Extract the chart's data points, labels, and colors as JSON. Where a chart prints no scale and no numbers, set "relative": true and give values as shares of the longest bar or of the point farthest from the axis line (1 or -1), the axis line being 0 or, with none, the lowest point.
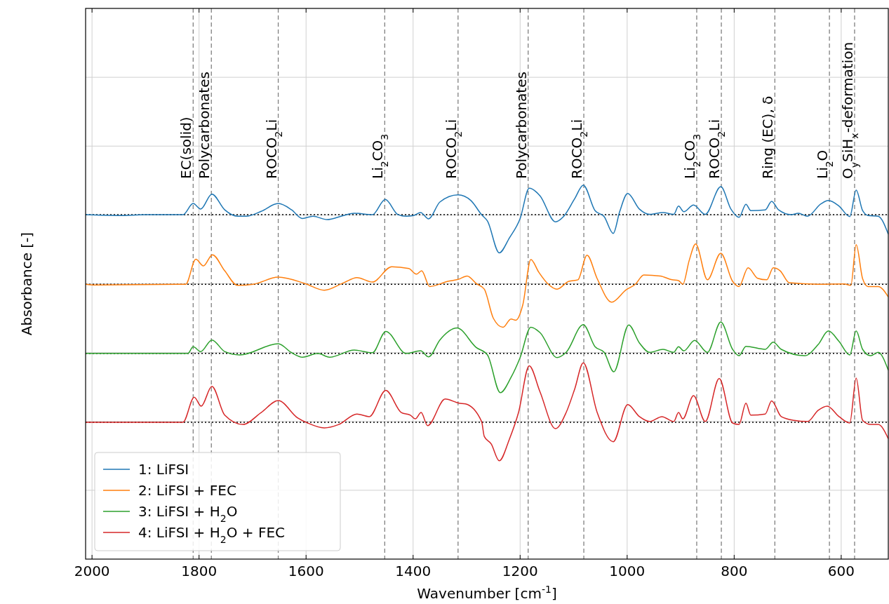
{
  "chart_data": {
    "type": "line",
    "xlabel": "Wavenumber [cm$^{-1}$]",
    "ylabel": "Absorbance [-]",
    "relative": true,
    "xlim": [
      2012,
      512
    ],
    "xticks": [
      2000,
      1800,
      1600,
      1400,
      1200,
      1000,
      800,
      600
    ],
    "grid": true,
    "legend": "bottom left",
    "series": [
      {
        "name": "1: LiFSI",
        "color": "#1f77b4",
        "x": [
          2012,
          1950,
          1900,
          1830,
          1811,
          1797,
          1776,
          1752,
          1728,
          1712,
          1684,
          1652,
          1627,
          1607,
          1587,
          1561,
          1530,
          1510,
          1476,
          1452,
          1428,
          1413,
          1399,
          1386,
          1371,
          1350,
          1316,
          1292,
          1272,
          1261,
          1239,
          1220,
          1200,
          1183,
          1163,
          1134,
          1119,
          1098,
          1082,
          1060,
          1043,
          1026,
          1014,
          999,
          977,
          958,
          933,
          913,
          904,
          894,
          876,
          854,
          825,
          806,
          791,
          778,
          769,
          742,
          730,
          717,
          693,
          680,
          663,
          638,
          624,
          604,
          584,
          572,
          560,
          550,
          531,
          512
        ],
        "values": [
          0.921,
          0.919,
          0.921,
          0.921,
          0.951,
          0.936,
          0.976,
          0.934,
          0.917,
          0.917,
          0.93,
          0.951,
          0.934,
          0.911,
          0.917,
          0.908,
          0.919,
          0.925,
          0.921,
          0.962,
          0.921,
          0.917,
          0.919,
          0.927,
          0.91,
          0.955,
          0.974,
          0.959,
          0.921,
          0.904,
          0.819,
          0.859,
          0.911,
          0.992,
          0.972,
          0.902,
          0.916,
          0.964,
          1.0,
          0.932,
          0.916,
          0.871,
          0.929,
          0.978,
          0.936,
          0.922,
          0.927,
          0.922,
          0.944,
          0.929,
          0.947,
          0.922,
          0.996,
          0.936,
          0.914,
          0.949,
          0.932,
          0.934,
          0.957,
          0.934,
          0.921,
          0.925,
          0.917,
          0.95,
          0.959,
          0.944,
          0.916,
          0.987,
          0.932,
          0.919,
          0.917,
          0.869
        ]
      },
      {
        "name": "2: LiFSI + FEC",
        "color": "#ff7f0e",
        "x": [
          2012,
          1995,
          1825,
          1806,
          1792,
          1775,
          1752,
          1728,
          1699,
          1652,
          1602,
          1566,
          1530,
          1505,
          1476,
          1440,
          1408,
          1394,
          1384,
          1369,
          1335,
          1316,
          1299,
          1282,
          1267,
          1250,
          1232,
          1217,
          1208,
          1195,
          1180,
          1165,
          1148,
          1131,
          1109,
          1092,
          1075,
          1056,
          1029,
          1002,
          984,
          969,
          938,
          916,
          904,
          896,
          884,
          872,
          850,
          825,
          803,
          791,
          774,
          756,
          739,
          727,
          714,
          697,
          643,
          595,
          582,
          572,
          560,
          550,
          531,
          512
        ],
        "values": [
          0.735,
          0.733,
          0.735,
          0.802,
          0.784,
          0.814,
          0.771,
          0.732,
          0.735,
          0.754,
          0.737,
          0.719,
          0.739,
          0.753,
          0.741,
          0.782,
          0.777,
          0.762,
          0.771,
          0.729,
          0.743,
          0.748,
          0.757,
          0.737,
          0.722,
          0.644,
          0.62,
          0.642,
          0.639,
          0.68,
          0.801,
          0.767,
          0.736,
          0.722,
          0.743,
          0.747,
          0.813,
          0.75,
          0.687,
          0.72,
          0.736,
          0.76,
          0.757,
          0.747,
          0.745,
          0.735,
          0.799,
          0.843,
          0.747,
          0.818,
          0.743,
          0.729,
          0.779,
          0.751,
          0.747,
          0.779,
          0.771,
          0.739,
          0.735,
          0.736,
          0.732,
          0.841,
          0.75,
          0.729,
          0.729,
          0.701
        ]
      },
      {
        "name": "3: LiFSI + H$_{2}$O",
        "color": "#2ca02c",
        "x": [
          2012,
          1821,
          1811,
          1797,
          1776,
          1752,
          1724,
          1652,
          1627,
          1607,
          1578,
          1556,
          1510,
          1476,
          1451,
          1413,
          1386,
          1371,
          1350,
          1318,
          1282,
          1261,
          1237,
          1217,
          1200,
          1180,
          1163,
          1131,
          1114,
          1082,
          1060,
          1043,
          1025,
          997,
          977,
          958,
          933,
          913,
          904,
          894,
          874,
          850,
          825,
          803,
          791,
          778,
          742,
          727,
          712,
          668,
          643,
          624,
          604,
          584,
          572,
          560,
          545,
          531,
          512
        ],
        "values": [
          0.55,
          0.55,
          0.568,
          0.555,
          0.586,
          0.555,
          0.546,
          0.576,
          0.552,
          0.54,
          0.55,
          0.54,
          0.559,
          0.552,
          0.609,
          0.55,
          0.557,
          0.541,
          0.586,
          0.618,
          0.566,
          0.546,
          0.445,
          0.486,
          0.539,
          0.62,
          0.606,
          0.539,
          0.553,
          0.627,
          0.568,
          0.553,
          0.501,
          0.626,
          0.578,
          0.553,
          0.561,
          0.553,
          0.568,
          0.557,
          0.585,
          0.553,
          0.634,
          0.561,
          0.544,
          0.569,
          0.561,
          0.58,
          0.561,
          0.544,
          0.574,
          0.61,
          0.582,
          0.546,
          0.61,
          0.561,
          0.544,
          0.553,
          0.505
        ]
      },
      {
        "name": "4: LiFSI + H$_{2}$O + FEC",
        "color": "#d62728",
        "x": [
          2012,
          1830,
          1809,
          1796,
          1776,
          1752,
          1718,
          1684,
          1652,
          1616,
          1597,
          1566,
          1539,
          1505,
          1482,
          1451,
          1422,
          1405,
          1396,
          1385,
          1373,
          1340,
          1314,
          1302,
          1272,
          1267,
          1254,
          1239,
          1220,
          1203,
          1183,
          1163,
          1134,
          1114,
          1098,
          1082,
          1056,
          1026,
          999,
          977,
          958,
          935,
          913,
          904,
          896,
          876,
          854,
          828,
          803,
          791,
          778,
          769,
          742,
          730,
          712,
          688,
          663,
          643,
          626,
          604,
          584,
          572,
          560,
          545,
          531,
          512
        ],
        "values": [
          0.366,
          0.366,
          0.433,
          0.409,
          0.462,
          0.385,
          0.36,
          0.392,
          0.424,
          0.378,
          0.364,
          0.351,
          0.36,
          0.388,
          0.381,
          0.451,
          0.392,
          0.385,
          0.375,
          0.392,
          0.357,
          0.428,
          0.417,
          0.415,
          0.368,
          0.328,
          0.308,
          0.263,
          0.321,
          0.392,
          0.517,
          0.448,
          0.349,
          0.392,
          0.455,
          0.525,
          0.392,
          0.314,
          0.413,
          0.381,
          0.368,
          0.381,
          0.368,
          0.392,
          0.375,
          0.437,
          0.368,
          0.483,
          0.364,
          0.36,
          0.417,
          0.385,
          0.388,
          0.423,
          0.381,
          0.371,
          0.368,
          0.398,
          0.409,
          0.381,
          0.364,
          0.484,
          0.371,
          0.36,
          0.36,
          0.322
        ]
      }
    ],
    "ref_lines": [
      {
        "axis": "y",
        "value": 0.921,
        "color": "#000000",
        "line_style": "dotted"
      },
      {
        "axis": "y",
        "value": 0.735,
        "color": "#000000",
        "line_style": "dotted"
      },
      {
        "axis": "y",
        "value": 0.55,
        "color": "#000000",
        "line_style": "dotted"
      },
      {
        "axis": "y",
        "value": 0.366,
        "color": "#000000",
        "line_style": "dotted"
      },
      {
        "axis": "x",
        "value": 1811,
        "label": "EC(solid)",
        "color": "#808080",
        "line_style": "dashed"
      },
      {
        "axis": "x",
        "value": 1777,
        "label": "Polycarbonates",
        "color": "#808080",
        "line_style": "dashed"
      },
      {
        "axis": "x",
        "value": 1652,
        "label": "ROCO$_{2}$Li",
        "color": "#808080",
        "line_style": "dashed"
      },
      {
        "axis": "x",
        "value": 1453,
        "label": "Li$_{2}$CO$_{3}$",
        "color": "#808080",
        "line_style": "dashed"
      },
      {
        "axis": "x",
        "value": 1316,
        "label": "ROCO$_{2}$Li",
        "color": "#808080",
        "line_style": "dashed"
      },
      {
        "axis": "x",
        "value": 1185,
        "label": "Polycarbonates",
        "color": "#808080",
        "line_style": "dashed"
      },
      {
        "axis": "x",
        "value": 1081,
        "label": "ROCO$_{2}$Li",
        "color": "#808080",
        "line_style": "dashed"
      },
      {
        "axis": "x",
        "value": 870,
        "label": "Li$_{2}$CO$_{3}$",
        "color": "#808080",
        "line_style": "dashed"
      },
      {
        "axis": "x",
        "value": 824,
        "label": "ROCO$_{2}$Li",
        "color": "#808080",
        "line_style": "dashed"
      },
      {
        "axis": "x",
        "value": 724,
        "label": "Ring (EC), δ",
        "color": "#808080",
        "line_style": "dashed"
      },
      {
        "axis": "x",
        "value": 622,
        "label": "Li$_{2}$O",
        "color": "#808080",
        "line_style": "dashed"
      },
      {
        "axis": "x",
        "value": 575,
        "label": "O$_{y}$SiH$_{x}$-deformation",
        "color": "#808080",
        "line_style": "dashed"
      }
    ]
  }
}
